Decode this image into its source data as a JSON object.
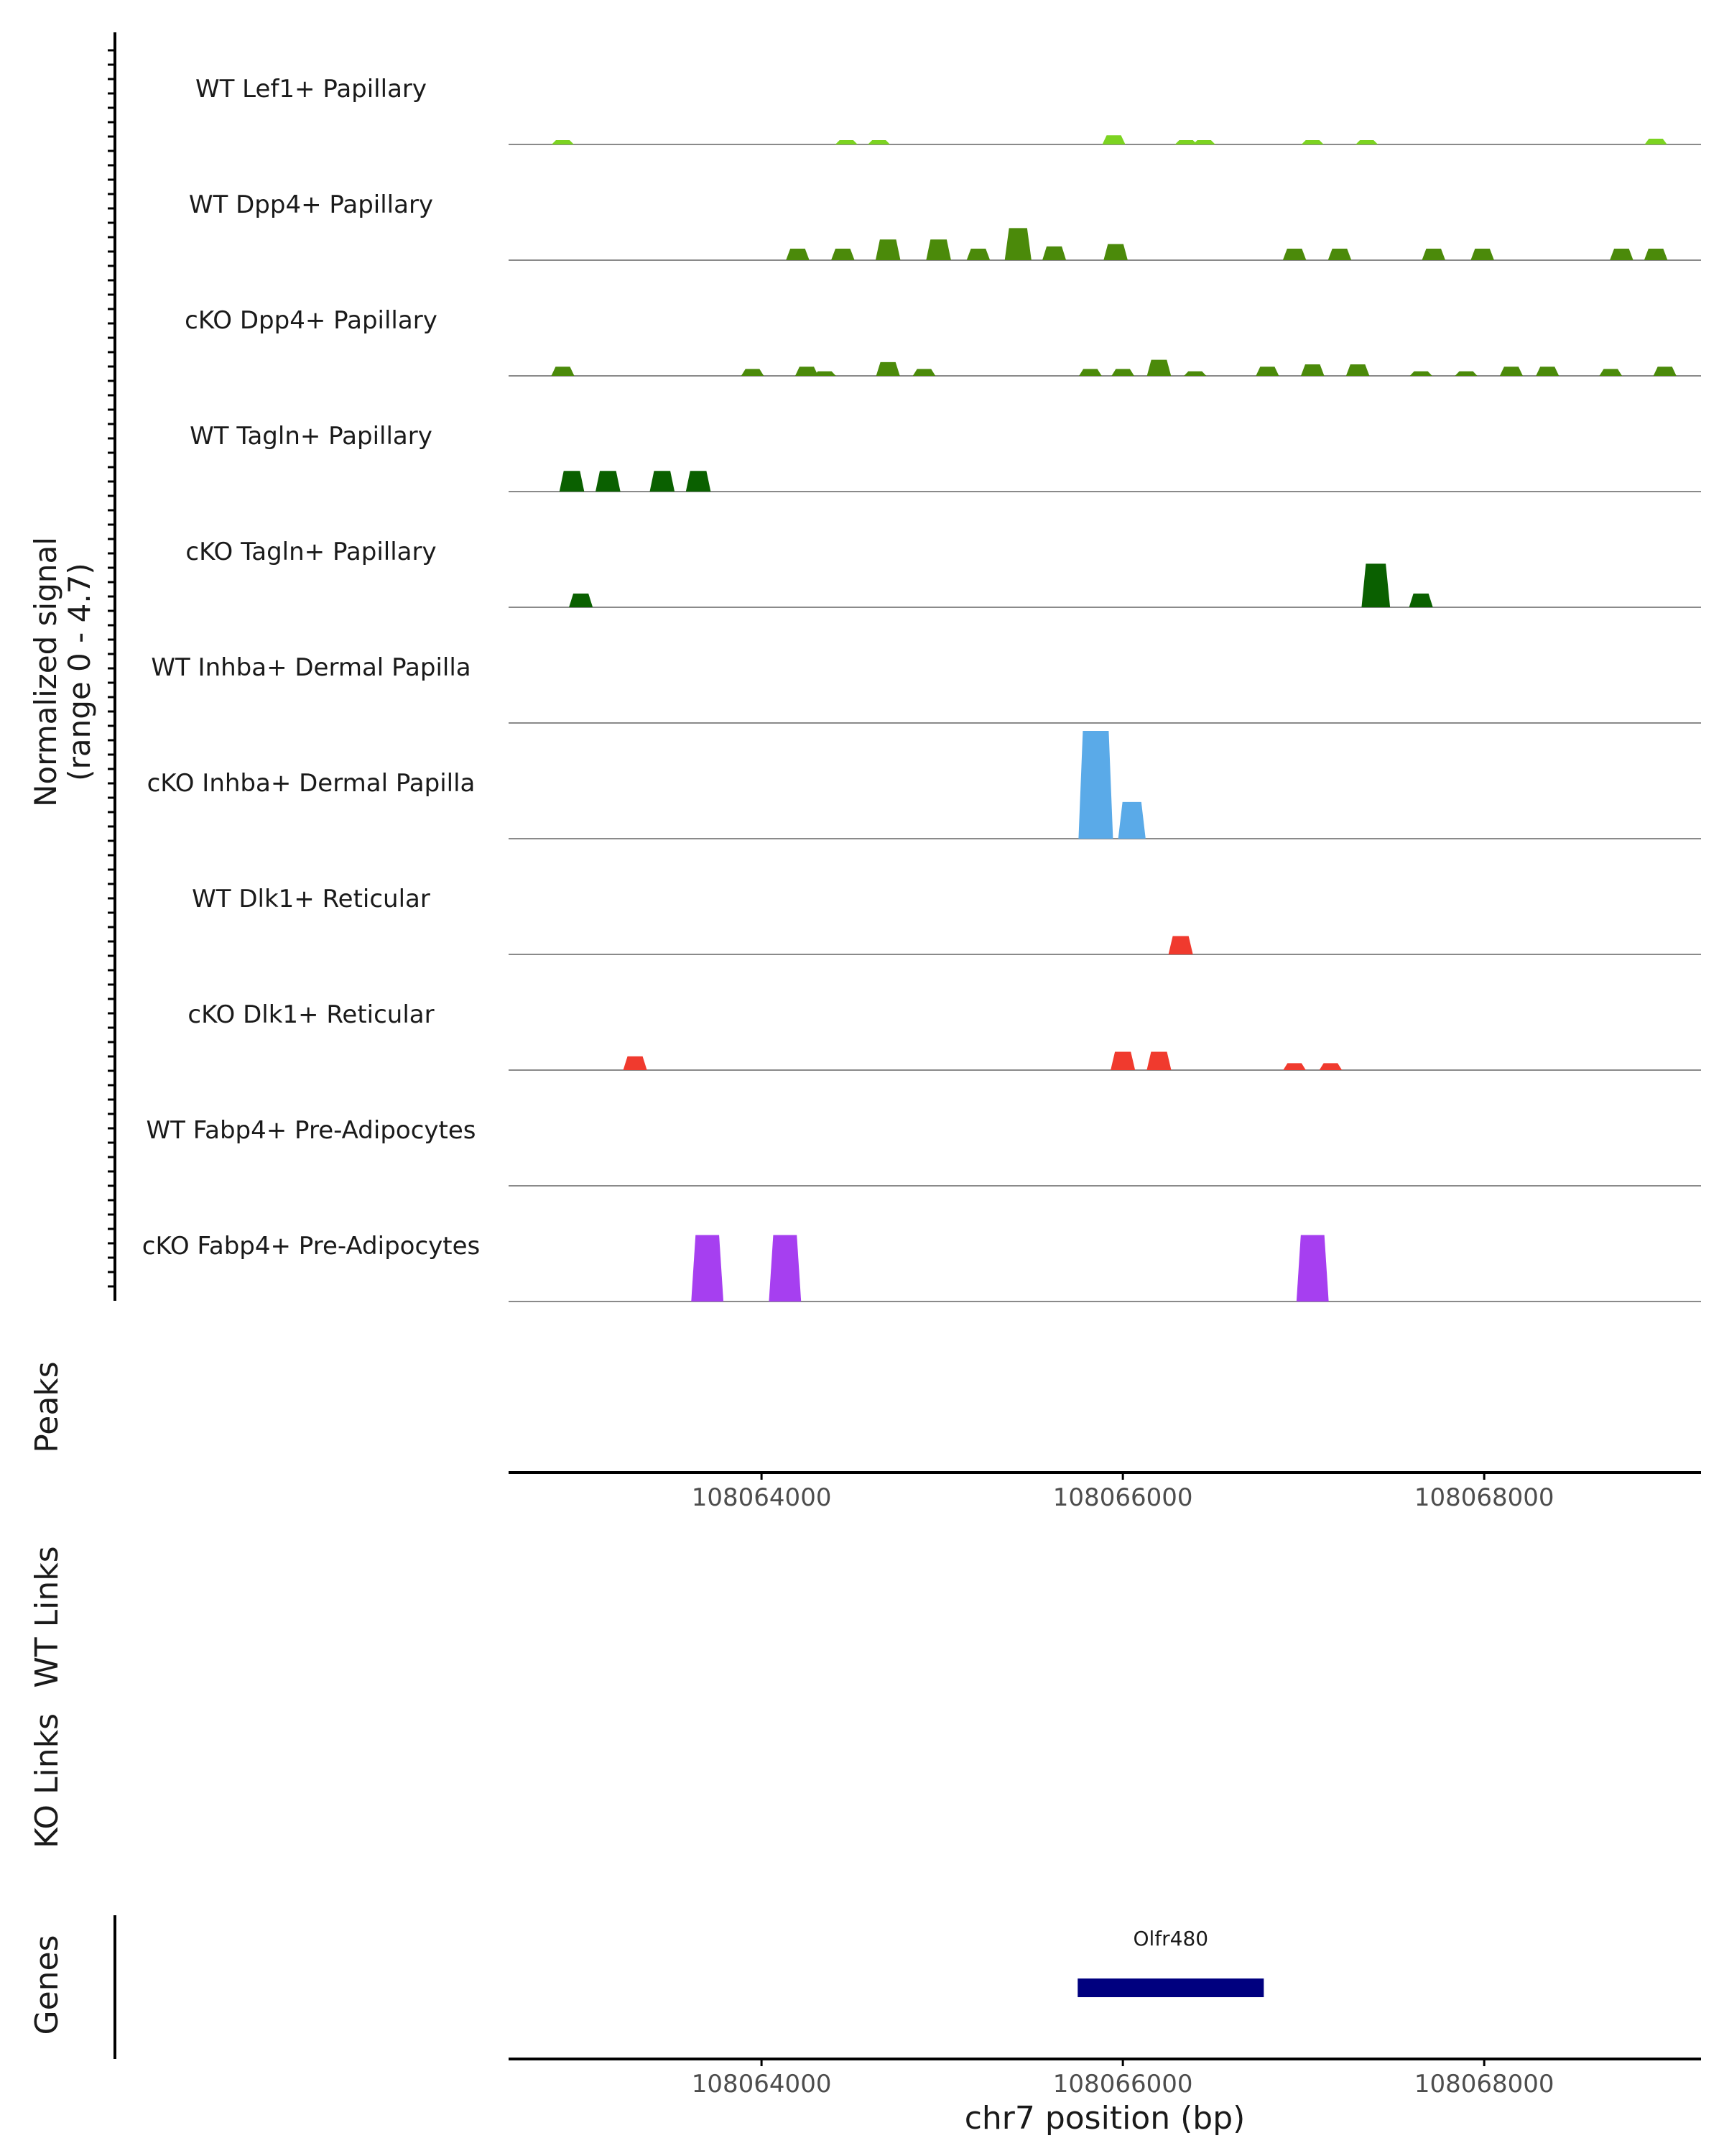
{
  "chart_data": {
    "type": "area",
    "title": "",
    "ylabel_line1": "Normalized signal",
    "ylabel_line2": "(range 0 - 4.7)",
    "xlabel": "chr7 position (bp)",
    "chromosome": "chr7",
    "xlim": [
      108062600,
      108069200
    ],
    "ylim": [
      0,
      4.7
    ],
    "x_ticks": [
      108064000,
      108066000,
      108068000
    ],
    "x_tick_labels": [
      "108064000",
      "108066000",
      "108068000"
    ],
    "colors": {
      "lef1": "#7cd321",
      "papillary": "#4b8a0a",
      "tagln": "#0a6000",
      "inhba": "#5aaae8",
      "dlk1": "#f03a2e",
      "fabp4": "#a63ff0",
      "gene": "#00007f",
      "baseline": "#8a8a8a",
      "axis": "#000000"
    },
    "tracks": [
      {
        "label": "WT Lef1+ Papillary",
        "color_key": "lef1",
        "peaks": [
          [
            108062900,
            0.15
          ],
          [
            108064470,
            0.1
          ],
          [
            108064650,
            0.12
          ],
          [
            108065950,
            0.4
          ],
          [
            108066350,
            0.12
          ],
          [
            108066450,
            0.1
          ],
          [
            108067050,
            0.1
          ],
          [
            108067350,
            0.12
          ],
          [
            108068950,
            0.25
          ]
        ]
      },
      {
        "label": "WT Dpp4+ Papillary",
        "color_key": "papillary",
        "peaks": [
          [
            108064200,
            0.5
          ],
          [
            108064450,
            0.5
          ],
          [
            108064700,
            0.9
          ],
          [
            108064980,
            0.9
          ],
          [
            108065200,
            0.5
          ],
          [
            108065420,
            1.4
          ],
          [
            108065620,
            0.6
          ],
          [
            108065960,
            0.7
          ],
          [
            108066950,
            0.5
          ],
          [
            108067200,
            0.5
          ],
          [
            108067720,
            0.5
          ],
          [
            108067990,
            0.5
          ],
          [
            108068760,
            0.5
          ],
          [
            108068950,
            0.5
          ]
        ]
      },
      {
        "label": "cKO Dpp4+ Papillary",
        "color_key": "papillary",
        "peaks": [
          [
            108062900,
            0.4
          ],
          [
            108063950,
            0.3
          ],
          [
            108064250,
            0.4
          ],
          [
            108064350,
            0.2
          ],
          [
            108064700,
            0.6
          ],
          [
            108064900,
            0.3
          ],
          [
            108065820,
            0.3
          ],
          [
            108066000,
            0.3
          ],
          [
            108066200,
            0.7
          ],
          [
            108066400,
            0.2
          ],
          [
            108066800,
            0.4
          ],
          [
            108067050,
            0.5
          ],
          [
            108067300,
            0.5
          ],
          [
            108067650,
            0.2
          ],
          [
            108067900,
            0.2
          ],
          [
            108068150,
            0.4
          ],
          [
            108068350,
            0.4
          ],
          [
            108068700,
            0.3
          ],
          [
            108069000,
            0.4
          ]
        ]
      },
      {
        "label": "WT Tagln+ Papillary",
        "color_key": "tagln",
        "peaks": [
          [
            108062950,
            0.9
          ],
          [
            108063150,
            0.9
          ],
          [
            108063450,
            0.9
          ],
          [
            108063650,
            0.9
          ]
        ]
      },
      {
        "label": "cKO Tagln+ Papillary",
        "color_key": "tagln",
        "peaks": [
          [
            108063000,
            0.6
          ],
          [
            108067400,
            1.9
          ],
          [
            108067650,
            0.6
          ]
        ]
      },
      {
        "label": "WT Inhba+ Dermal Papilla",
        "color_key": "inhba",
        "peaks": []
      },
      {
        "label": "cKO Inhba+ Dermal Papilla",
        "color_key": "inhba",
        "peaks": [
          [
            108065850,
            4.7
          ],
          [
            108066050,
            1.6
          ]
        ]
      },
      {
        "label": "WT Dlk1+ Reticular",
        "color_key": "dlk1",
        "peaks": [
          [
            108066320,
            0.8
          ]
        ]
      },
      {
        "label": "cKO Dlk1+ Reticular",
        "color_key": "dlk1",
        "peaks": [
          [
            108063300,
            0.6
          ],
          [
            108066000,
            0.8
          ],
          [
            108066200,
            0.8
          ],
          [
            108066950,
            0.3
          ],
          [
            108067150,
            0.3
          ]
        ]
      },
      {
        "label": "WT Fabp4+ Pre-Adipocytes",
        "color_key": "fabp4",
        "peaks": []
      },
      {
        "label": "cKO Fabp4+ Pre-Adipocytes",
        "color_key": "fabp4",
        "peaks": [
          [
            108063700,
            2.9
          ],
          [
            108064130,
            2.9
          ],
          [
            108067050,
            2.9
          ]
        ]
      }
    ],
    "side_labels": {
      "peaks": "Peaks",
      "wt_links": "WT Links",
      "ko_links": "KO Links",
      "genes": "Genes"
    },
    "genes": [
      {
        "name": "Olfr480",
        "start": 108065750,
        "end": 108066780
      }
    ]
  }
}
